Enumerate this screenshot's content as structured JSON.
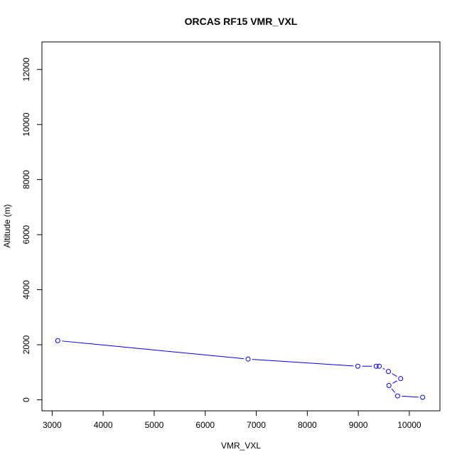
{
  "chart_data": {
    "type": "line",
    "title": "ORCAS RF15 VMR_VXL",
    "xlabel": "VMR_VXL",
    "ylabel": "Altitude (m)",
    "xlim": [
      2800,
      10600
    ],
    "ylim": [
      -400,
      13000
    ],
    "xticks": [
      3000,
      4000,
      5000,
      6000,
      7000,
      8000,
      9000,
      10000
    ],
    "yticks": [
      0,
      2000,
      4000,
      6000,
      8000,
      10000,
      12000
    ],
    "grid": false,
    "series": [
      {
        "color": "#0000ff",
        "marker": "open-circle",
        "points": [
          {
            "x": 3110,
            "y": 2150
          },
          {
            "x": 6840,
            "y": 1480
          },
          {
            "x": 8990,
            "y": 1220
          },
          {
            "x": 9350,
            "y": 1220
          },
          {
            "x": 9410,
            "y": 1220
          },
          {
            "x": 9590,
            "y": 1030
          },
          {
            "x": 9830,
            "y": 770
          },
          {
            "x": 9600,
            "y": 520
          },
          {
            "x": 9770,
            "y": 140
          },
          {
            "x": 10260,
            "y": 90
          }
        ]
      }
    ]
  }
}
